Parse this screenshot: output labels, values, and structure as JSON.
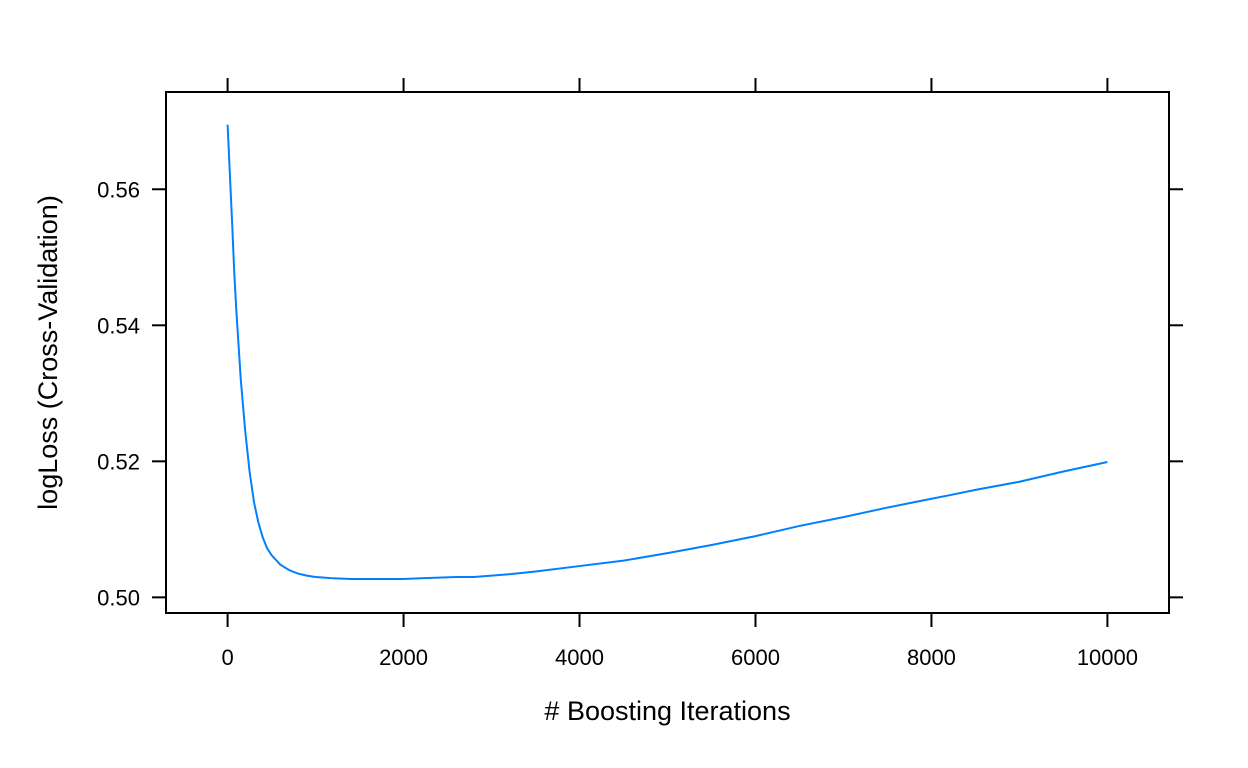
{
  "chart_data": {
    "type": "line",
    "title": "",
    "xlabel": "# Boosting Iterations",
    "ylabel": "logLoss (Cross-Validation)",
    "xlim": [
      -700,
      10700
    ],
    "ylim": [
      0.4977,
      0.5743
    ],
    "xticks": [
      0,
      2000,
      4000,
      6000,
      8000,
      10000
    ],
    "xtick_labels": [
      "0",
      "2000",
      "4000",
      "6000",
      "8000",
      "10000"
    ],
    "yticks": [
      0.5,
      0.52,
      0.54,
      0.56
    ],
    "ytick_labels": [
      "0.50",
      "0.52",
      "0.54",
      "0.56"
    ],
    "grid": false,
    "legend": "none",
    "series_color": "#0080ff",
    "series": [
      {
        "x": [
          0,
          25,
          50,
          75,
          100,
          150,
          200,
          250,
          300,
          350,
          400,
          450,
          500,
          600,
          700,
          800,
          900,
          1000,
          1100,
          1200,
          1400,
          1600,
          1800,
          2000,
          2200,
          2400,
          2600,
          2800,
          3000,
          3200,
          3500,
          4000,
          4500,
          5000,
          5500,
          6000,
          6500,
          7000,
          7500,
          8000,
          8200,
          8500,
          9000,
          9500,
          10000
        ],
        "y": [
          0.5695,
          0.5625,
          0.5555,
          0.548,
          0.542,
          0.532,
          0.5245,
          0.5185,
          0.514,
          0.511,
          0.5088,
          0.5072,
          0.5062,
          0.5048,
          0.504,
          0.5035,
          0.5032,
          0.503,
          0.5029,
          0.5028,
          0.5027,
          0.5027,
          0.5027,
          0.5027,
          0.5028,
          0.5029,
          0.503,
          0.503,
          0.5032,
          0.5034,
          0.5038,
          0.5046,
          0.5054,
          0.5065,
          0.5077,
          0.509,
          0.5105,
          0.5118,
          0.5132,
          0.5145,
          0.515,
          0.5158,
          0.517,
          0.5185,
          0.5199
        ]
      }
    ]
  }
}
